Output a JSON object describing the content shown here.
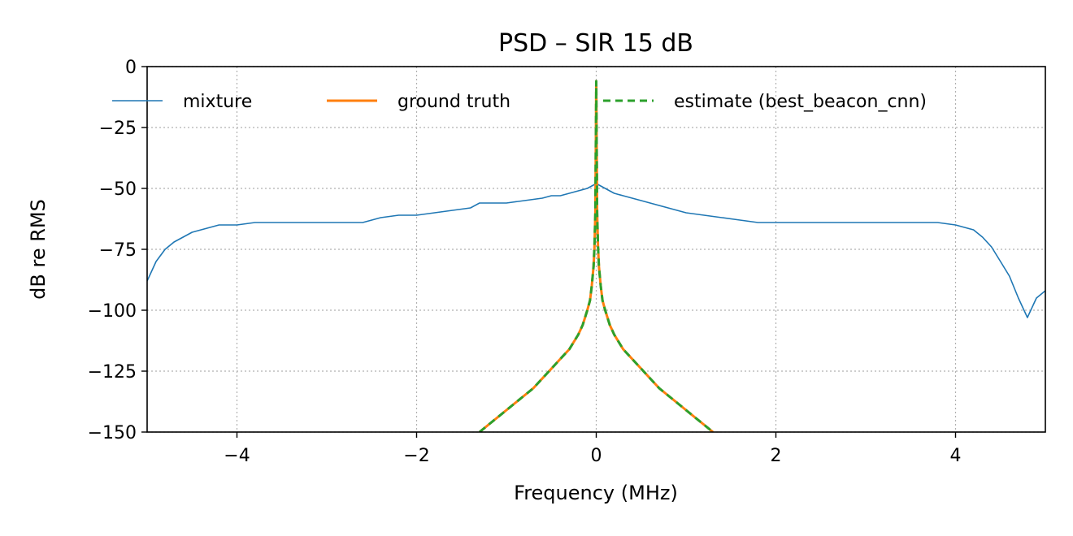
{
  "chart_data": {
    "type": "line",
    "title": "PSD – SIR 15 dB",
    "xlabel": "Frequency (MHz)",
    "ylabel": "dB re RMS",
    "xlim": [
      -5,
      5
    ],
    "ylim": [
      -150,
      0
    ],
    "xticks": [
      -4,
      -2,
      0,
      2,
      4
    ],
    "xtick_labels": [
      "−4",
      "−2",
      "0",
      "2",
      "4"
    ],
    "yticks": [
      0,
      -25,
      -50,
      -75,
      -100,
      -125,
      -150
    ],
    "ytick_labels": [
      "0",
      "−25",
      "−50",
      "−75",
      "−100",
      "−125",
      "−150"
    ],
    "grid": true,
    "legend_position": "top, single row",
    "series": [
      {
        "name": "mixture",
        "color": "#1f77b4",
        "style": "solid",
        "x": [
          -5.0,
          -4.9,
          -4.8,
          -4.7,
          -4.6,
          -4.5,
          -4.4,
          -4.3,
          -4.2,
          -4.1,
          -4.0,
          -3.8,
          -3.6,
          -3.5,
          -3.4,
          -3.2,
          -3.0,
          -2.8,
          -2.6,
          -2.5,
          -2.4,
          -2.2,
          -2.0,
          -1.8,
          -1.6,
          -1.4,
          -1.3,
          -1.2,
          -1.0,
          -0.8,
          -0.6,
          -0.5,
          -0.4,
          -0.3,
          -0.2,
          -0.1,
          -0.05,
          0.0,
          0.05,
          0.1,
          0.2,
          0.3,
          0.4,
          0.5,
          0.6,
          0.8,
          1.0,
          1.2,
          1.4,
          1.6,
          1.8,
          2.0,
          2.2,
          2.4,
          2.6,
          2.8,
          3.0,
          3.2,
          3.4,
          3.6,
          3.8,
          4.0,
          4.1,
          4.2,
          4.3,
          4.4,
          4.5,
          4.6,
          4.7,
          4.8,
          4.9,
          5.0
        ],
        "y": [
          -88,
          -80,
          -75,
          -72,
          -70,
          -68,
          -67,
          -66,
          -65,
          -65,
          -65,
          -64,
          -64,
          -64,
          -64,
          -64,
          -64,
          -64,
          -64,
          -63,
          -62,
          -61,
          -61,
          -60,
          -59,
          -58,
          -56,
          -56,
          -56,
          -55,
          -54,
          -53,
          -53,
          -52,
          -51,
          -50,
          -49,
          -48,
          -49,
          -50,
          -52,
          -53,
          -54,
          -55,
          -56,
          -58,
          -60,
          -61,
          -62,
          -63,
          -64,
          -64,
          -64,
          -64,
          -64,
          -64,
          -64,
          -64,
          -64,
          -64,
          -64,
          -65,
          -66,
          -67,
          -70,
          -74,
          -80,
          -86,
          -95,
          -103,
          -95,
          -92
        ]
      },
      {
        "name": "ground truth",
        "color": "#ff7f0e",
        "style": "solid",
        "x": [
          -1.3,
          -1.2,
          -1.1,
          -1.0,
          -0.9,
          -0.8,
          -0.7,
          -0.6,
          -0.5,
          -0.4,
          -0.3,
          -0.2,
          -0.15,
          -0.1,
          -0.07,
          -0.05,
          -0.03,
          -0.02,
          -0.01,
          0.0,
          0.01,
          0.02,
          0.03,
          0.05,
          0.07,
          0.1,
          0.15,
          0.2,
          0.3,
          0.4,
          0.5,
          0.6,
          0.7,
          0.8,
          0.9,
          1.0,
          1.1,
          1.2,
          1.3
        ],
        "y": [
          -150,
          -147,
          -144,
          -141,
          -138,
          -135,
          -132,
          -128,
          -124,
          -120,
          -116,
          -110,
          -106,
          -100,
          -96,
          -90,
          -82,
          -74,
          -60,
          -6,
          -60,
          -74,
          -82,
          -90,
          -96,
          -100,
          -106,
          -110,
          -116,
          -120,
          -124,
          -128,
          -132,
          -135,
          -138,
          -141,
          -144,
          -147,
          -150
        ]
      },
      {
        "name": "estimate (best_beacon_cnn)",
        "color": "#2ca02c",
        "style": "dashed",
        "x": [
          -1.3,
          -1.2,
          -1.1,
          -1.0,
          -0.9,
          -0.8,
          -0.7,
          -0.6,
          -0.5,
          -0.4,
          -0.3,
          -0.2,
          -0.15,
          -0.1,
          -0.07,
          -0.05,
          -0.03,
          -0.02,
          -0.01,
          0.0,
          0.01,
          0.02,
          0.03,
          0.05,
          0.07,
          0.1,
          0.15,
          0.2,
          0.3,
          0.4,
          0.5,
          0.6,
          0.7,
          0.8,
          0.9,
          1.0,
          1.1,
          1.2,
          1.3
        ],
        "y": [
          -150,
          -147,
          -144,
          -141,
          -138,
          -135,
          -132,
          -128,
          -124,
          -120,
          -116,
          -110,
          -106,
          -100,
          -96,
          -90,
          -82,
          -74,
          -60,
          -6,
          -60,
          -74,
          -82,
          -90,
          -96,
          -100,
          -106,
          -110,
          -116,
          -120,
          -124,
          -128,
          -132,
          -135,
          -138,
          -141,
          -144,
          -147,
          -150
        ]
      }
    ]
  }
}
